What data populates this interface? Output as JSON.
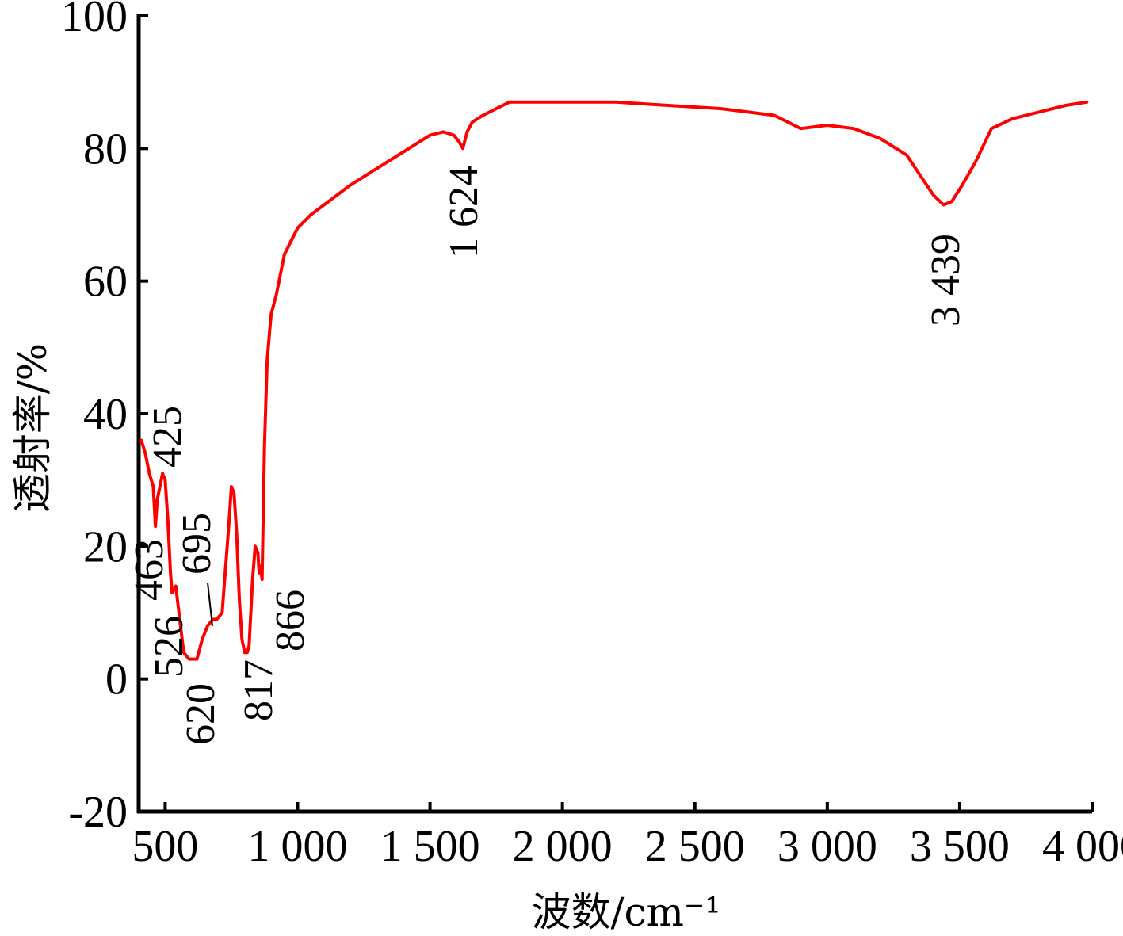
{
  "chart_data": {
    "type": "line",
    "title": "",
    "xlabel": "波数/cm⁻¹",
    "ylabel": "透射率/%",
    "xlim": [
      400,
      4000
    ],
    "ylim": [
      -20,
      100
    ],
    "x_ticks": [
      500,
      1000,
      1500,
      2000,
      2500,
      3000,
      3500,
      4000
    ],
    "x_tick_labels": [
      "500",
      "1 000",
      "1 500",
      "2 000",
      "2 500",
      "3 000",
      "3 500",
      "4 000"
    ],
    "y_ticks": [
      -20,
      0,
      20,
      40,
      60,
      80,
      100
    ],
    "y_tick_labels": [
      "-20",
      "0",
      "20",
      "40",
      "60",
      "80",
      "100"
    ],
    "grid": false,
    "line_color": "#ff0000",
    "series": [
      {
        "x": [
          410,
          425,
          440,
          455,
          463,
          470,
          490,
          500,
          510,
          520,
          526,
          540,
          555,
          570,
          590,
          610,
          620,
          640,
          660,
          680,
          695,
          715,
          740,
          750,
          760,
          770,
          780,
          790,
          800,
          810,
          817,
          830,
          840,
          850,
          855,
          860,
          866,
          875,
          885,
          900,
          920,
          950,
          1000,
          1050,
          1100,
          1200,
          1300,
          1400,
          1500,
          1550,
          1590,
          1610,
          1624,
          1640,
          1660,
          1700,
          1800,
          2000,
          2200,
          2400,
          2600,
          2800,
          2900,
          3000,
          3100,
          3200,
          3300,
          3350,
          3400,
          3439,
          3470,
          3510,
          3560,
          3620,
          3700,
          3800,
          3900,
          3980
        ],
        "y": [
          36,
          34,
          31,
          29,
          23,
          27,
          31,
          30,
          24,
          16,
          13,
          14,
          9,
          4,
          3,
          3,
          3,
          6,
          8,
          9,
          9,
          10,
          23,
          29,
          28,
          22,
          12,
          6,
          4,
          4,
          5,
          15,
          20,
          19,
          16,
          17,
          15,
          35,
          48,
          55,
          58,
          64,
          68,
          70,
          71.5,
          74.5,
          77,
          79.5,
          82,
          82.5,
          82,
          81,
          80,
          82.5,
          84,
          85,
          87,
          87,
          87,
          86.5,
          86,
          85,
          83,
          83.5,
          83,
          81.5,
          79,
          76,
          73,
          71.5,
          72,
          74.5,
          78,
          83,
          84.5,
          85.5,
          86.5,
          87
        ]
      }
    ],
    "annotations": [
      "425",
      "463",
      "526",
      "620",
      "695",
      "817",
      "866",
      "1 624",
      "3 439"
    ]
  }
}
